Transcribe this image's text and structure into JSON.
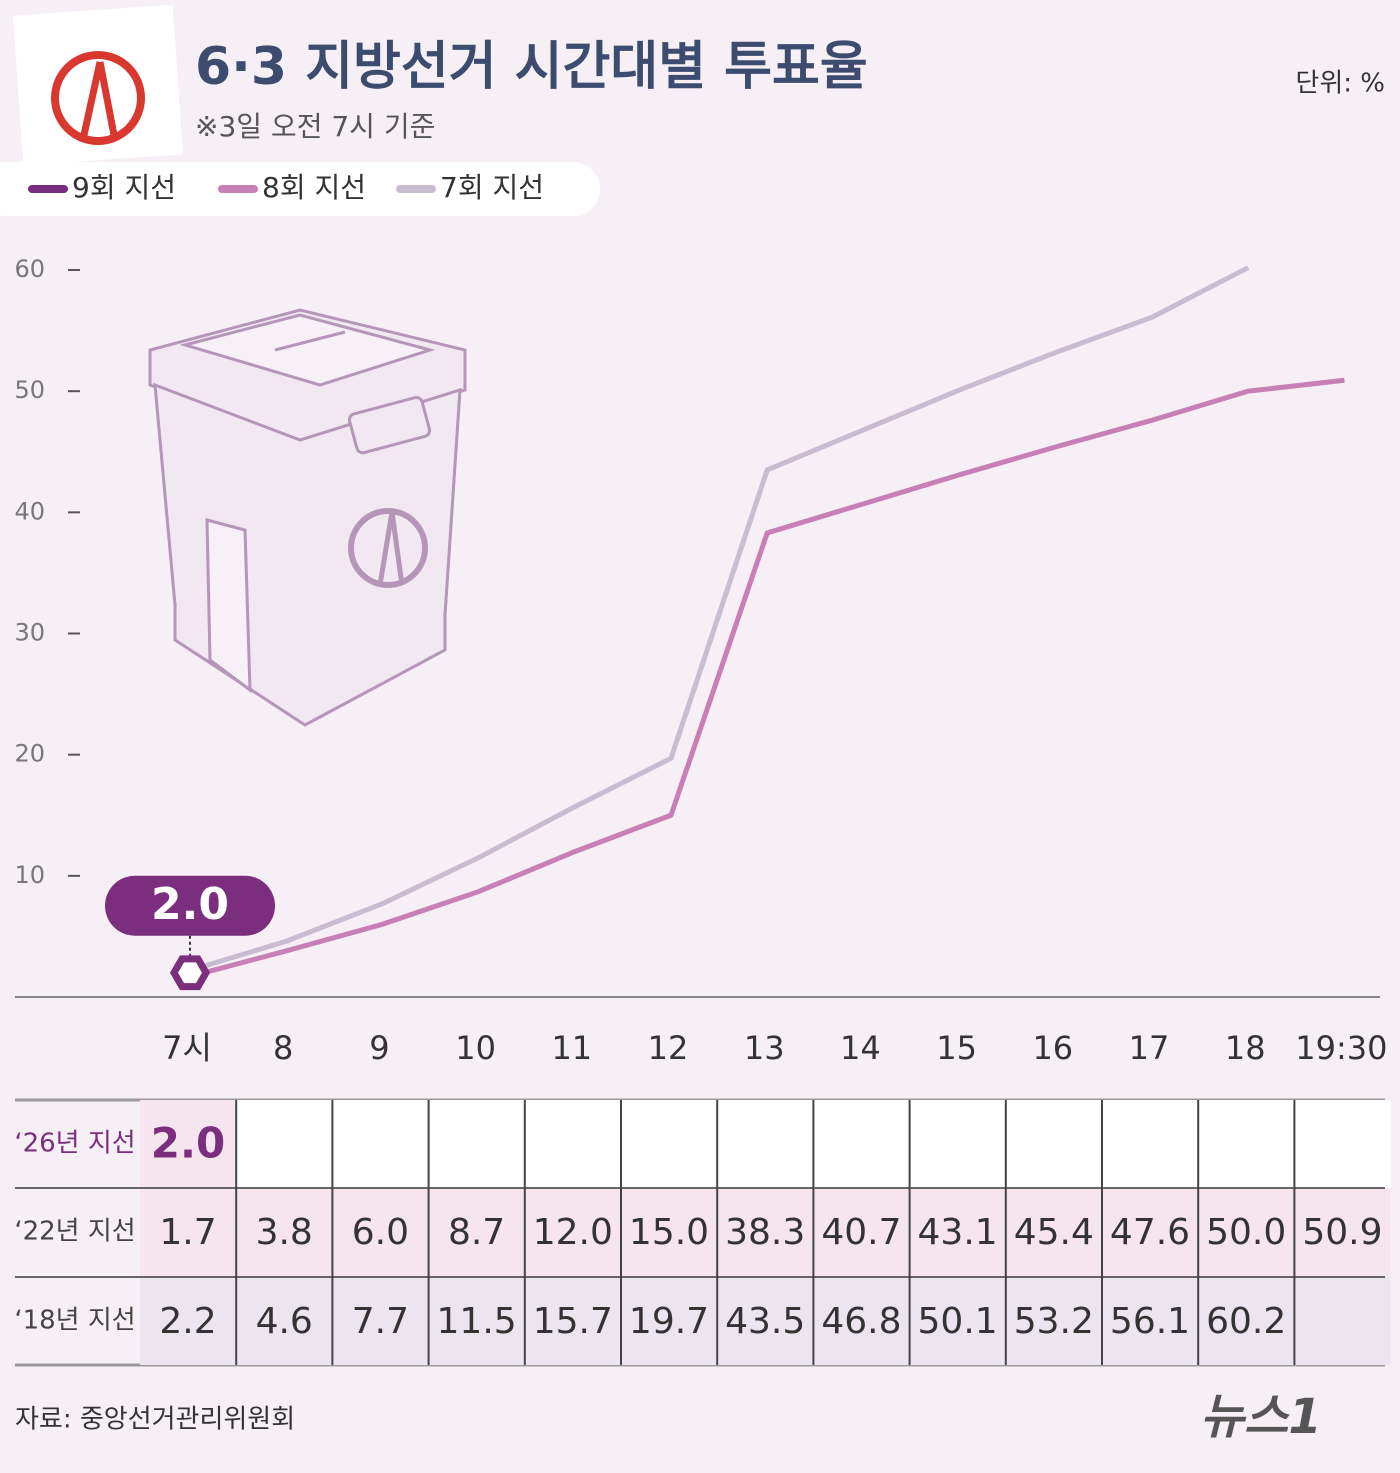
{
  "chart_data": {
    "type": "line",
    "title": "6·3 지방선거 시간대별 투표율",
    "subtitle": "※3일 오전 7시 기준",
    "unit": "단위: %",
    "categories": [
      "7시",
      "8",
      "9",
      "10",
      "11",
      "12",
      "13",
      "14",
      "15",
      "16",
      "17",
      "18",
      "19:30"
    ],
    "series": [
      {
        "name": "9회 지선",
        "row_label": "‘26년 지선",
        "color": "#7b2d7e",
        "values": [
          2.0,
          null,
          null,
          null,
          null,
          null,
          null,
          null,
          null,
          null,
          null,
          null,
          null
        ],
        "value_labels": [
          "2.0",
          null,
          null,
          null,
          null,
          null,
          null,
          null,
          null,
          null,
          null,
          null,
          null
        ]
      },
      {
        "name": "8회 지선",
        "row_label": "‘22년 지선",
        "color": "#c77fb5",
        "values": [
          1.7,
          3.8,
          6.0,
          8.7,
          12.0,
          15.0,
          38.3,
          40.7,
          43.1,
          45.4,
          47.6,
          50.0,
          50.9
        ],
        "value_labels": [
          "1.7",
          "3.8",
          "6.0",
          "8.7",
          "12.0",
          "15.0",
          "38.3",
          "40.7",
          "43.1",
          "45.4",
          "47.6",
          "50.0",
          "50.9"
        ]
      },
      {
        "name": "7회 지선",
        "row_label": "‘18년 지선",
        "color": "#c9bcd0",
        "values": [
          2.2,
          4.6,
          7.7,
          11.5,
          15.7,
          19.7,
          43.5,
          46.8,
          50.1,
          53.2,
          56.1,
          60.2,
          null
        ],
        "value_labels": [
          "2.2",
          "4.6",
          "7.7",
          "11.5",
          "15.7",
          "19.7",
          "43.5",
          "46.8",
          "50.1",
          "53.2",
          "56.1",
          "60.2",
          null
        ]
      }
    ],
    "ylim": [
      0,
      60
    ],
    "yticks": [
      10,
      20,
      30,
      40,
      50,
      60
    ],
    "source": "자료: 중앙선거관리위원회",
    "logo": "뉴스1"
  }
}
